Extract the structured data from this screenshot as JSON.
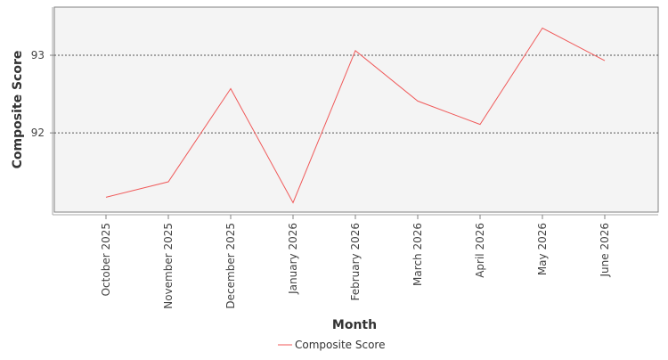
{
  "chart_data": {
    "type": "line",
    "xlabel": "Month",
    "ylabel": "Composite Score",
    "categories": [
      "October 2025",
      "November 2025",
      "December 2025",
      "January 2026",
      "February 2026",
      "March 2026",
      "April 2026",
      "May 2026",
      "June 2026"
    ],
    "series": [
      {
        "name": "Composite Score",
        "color": "#f05a5a",
        "values": [
          91.17,
          91.37,
          92.57,
          91.1,
          93.06,
          92.41,
          92.11,
          93.35,
          92.93
        ]
      }
    ],
    "ylim": [
      90.98,
      93.62
    ],
    "yticks": [
      92,
      93
    ],
    "grid": true,
    "legend_position": "bottom-center"
  }
}
